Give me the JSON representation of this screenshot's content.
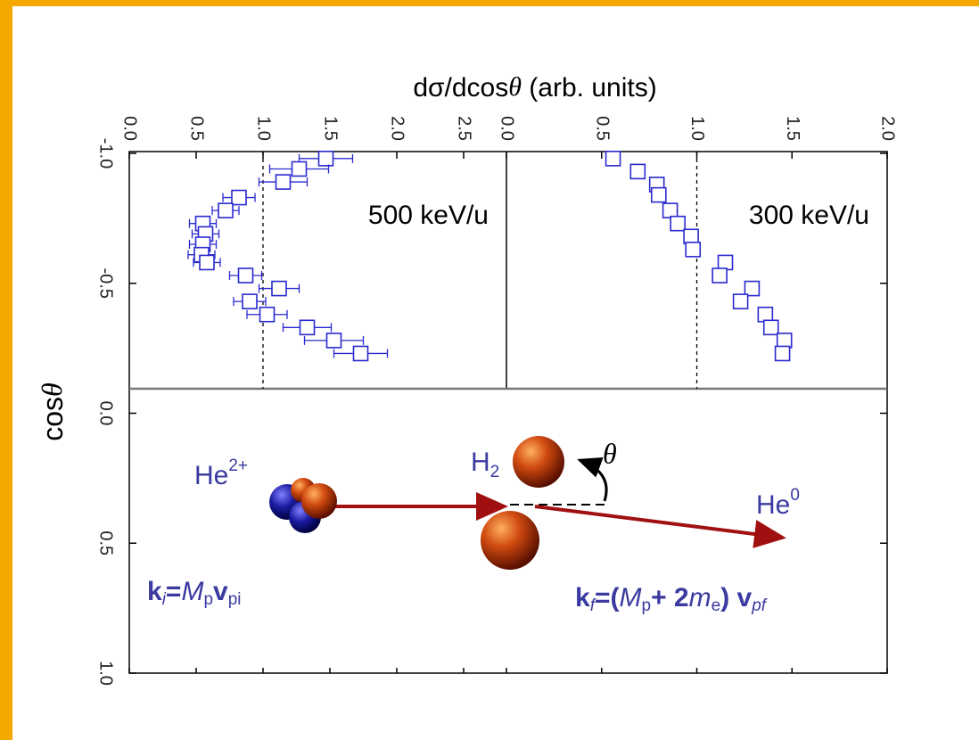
{
  "chart_data": [
    {
      "type": "scatter",
      "annotation": "500 keV/u",
      "xlabel": [
        "dσ/dcos",
        "θ",
        " (arb. units)"
      ],
      "ylabel": [
        "cos",
        "θ"
      ],
      "xlim": [
        0,
        2.82
      ],
      "xticks": [
        {
          "value": 0,
          "label": "0.0"
        },
        0.5,
        {
          "value": 1,
          "label": "1.0"
        },
        1.5,
        {
          "value": 2,
          "label": "2.0"
        },
        2.5
      ],
      "ylim": [
        -1,
        1
      ],
      "yticks": [
        {
          "value": -1,
          "label": "-1.0"
        },
        -0.5,
        {
          "value": 0,
          "label": "0.0"
        },
        0.5,
        {
          "value": 1,
          "label": "1.0"
        }
      ],
      "reference_x": 1,
      "series": [
        {
          "color": "#2a2ad0",
          "x": [
            1.47,
            1.27,
            1.15,
            0.82,
            0.72,
            0.55,
            0.57,
            0.55,
            0.54,
            0.58,
            0.87,
            1.12,
            0.9,
            1.03,
            1.33,
            1.53,
            1.73
          ],
          "y": [
            -0.98,
            -0.94,
            -0.89,
            -0.83,
            -0.78,
            -0.73,
            -0.69,
            -0.65,
            -0.61,
            -0.58,
            -0.53,
            -0.48,
            -0.43,
            -0.38,
            -0.33,
            -0.28,
            -0.23
          ],
          "xerr": [
            0.2,
            0.22,
            0.18,
            0.12,
            0.1,
            0.1,
            0.1,
            0.1,
            0.1,
            0.1,
            0.12,
            0.15,
            0.12,
            0.15,
            0.18,
            0.22,
            0.2
          ]
        }
      ]
    },
    {
      "type": "scatter",
      "annotation": "300 keV/u",
      "xlim": [
        0,
        2
      ],
      "xticks": [
        {
          "value": 0,
          "label": "0.0"
        },
        0.5,
        {
          "value": 1,
          "label": "1.0"
        },
        1.5,
        {
          "value": 2,
          "label": "2.0"
        }
      ],
      "ylim": [
        -1,
        1
      ],
      "reference_x": 1,
      "series": [
        {
          "color": "#2a2ad0",
          "x": [
            0.56,
            0.69,
            0.79,
            0.8,
            0.86,
            0.9,
            0.97,
            0.98,
            1.15,
            1.12,
            1.29,
            1.23,
            1.36,
            1.39,
            1.46,
            1.45
          ],
          "y": [
            -0.98,
            -0.93,
            -0.88,
            -0.84,
            -0.78,
            -0.73,
            -0.68,
            -0.63,
            -0.58,
            -0.53,
            -0.48,
            -0.43,
            -0.38,
            -0.33,
            -0.28,
            -0.23
          ]
        }
      ]
    }
  ],
  "diagram": {
    "projectile": [
      "He",
      "2+"
    ],
    "target": [
      "H",
      "2"
    ],
    "angle": "θ",
    "product": [
      "He",
      "0"
    ],
    "initial": [
      "k",
      "i",
      "=",
      "M",
      "p",
      "v",
      "pi"
    ],
    "final": [
      "k",
      "f",
      "=(",
      "M",
      "p",
      "+ 2",
      "m",
      "e",
      ") ",
      "v",
      "pf"
    ]
  }
}
